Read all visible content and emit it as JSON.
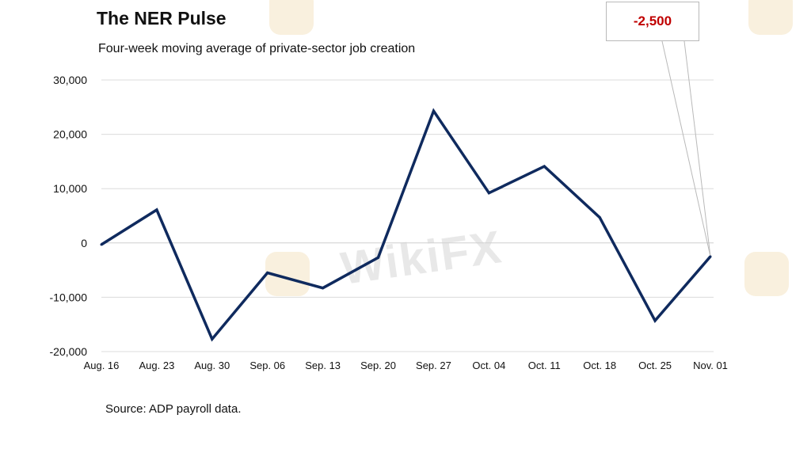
{
  "header": {
    "title": "The NER Pulse",
    "subtitle": "Four-week moving average of private-sector job creation"
  },
  "footer": {
    "source": "Source: ADP payroll data."
  },
  "callout": {
    "label": "-2,500",
    "color": "#c00000"
  },
  "watermark": {
    "text": "WikiFX"
  },
  "colors": {
    "line": "#0f2a5e",
    "grid": "#dcdcdc",
    "callout_text": "#c00000"
  },
  "chart_data": {
    "type": "line",
    "title": "The NER Pulse",
    "subtitle": "Four-week moving average of private-sector job creation",
    "xlabel": "",
    "ylabel": "",
    "categories": [
      "Aug. 16",
      "Aug. 23",
      "Aug. 30",
      "Sep. 06",
      "Sep. 13",
      "Sep. 20",
      "Sep. 27",
      "Oct. 04",
      "Oct. 11",
      "Oct. 18",
      "Oct. 25",
      "Nov. 01"
    ],
    "series": [
      {
        "values": [
          -300,
          6100,
          -17700,
          -5500,
          -8300,
          -2700,
          24300,
          9200,
          14100,
          4700,
          -14300,
          -2500
        ]
      }
    ],
    "ylim": [
      -20000,
      30000
    ],
    "yticks": [
      -20000,
      -10000,
      0,
      10000,
      20000,
      30000
    ],
    "ytick_labels": [
      "-20,000",
      "-10,000",
      "0",
      "10,000",
      "20,000",
      "30,000"
    ],
    "grid": true,
    "legend": "none",
    "annotations": [
      {
        "text": "-2,500",
        "target_category": "Nov. 01"
      }
    ]
  }
}
